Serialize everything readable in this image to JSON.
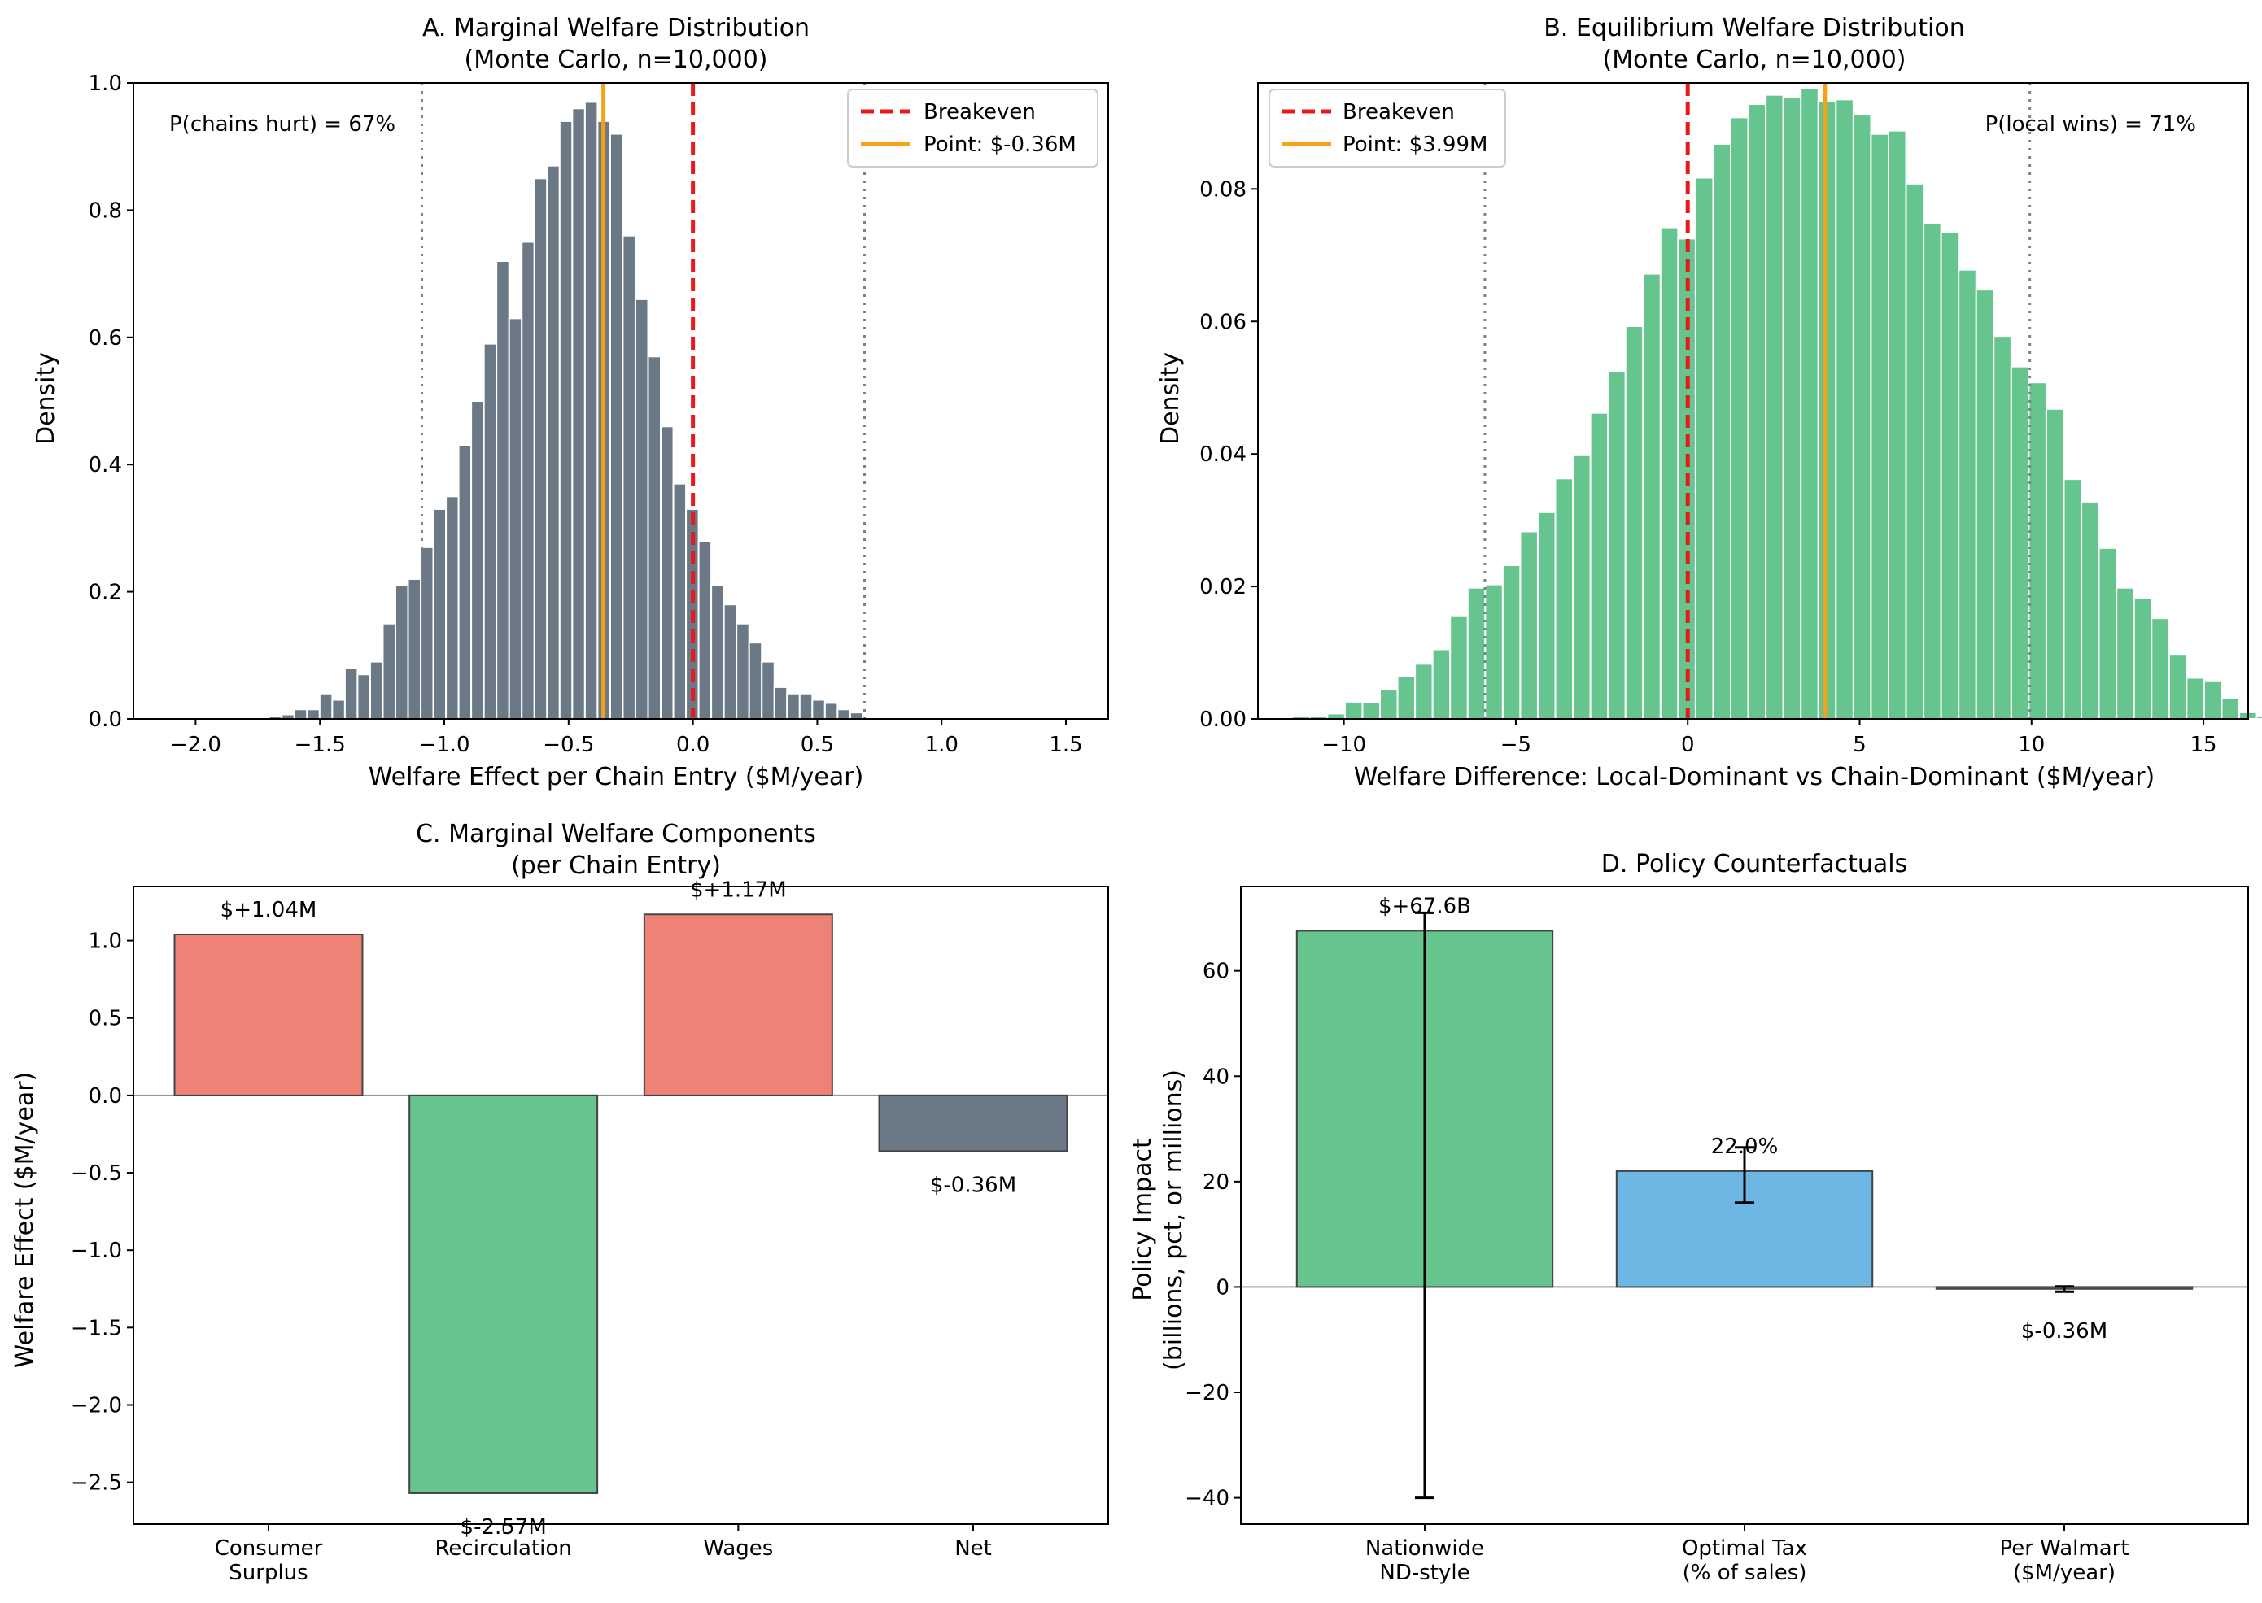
{
  "panelA": {
    "title_line1": "A. Marginal Welfare Distribution",
    "title_line2": "(Monte Carlo, n=10,000)",
    "xlabel": "Welfare Effect per Chain Entry ($M/year)",
    "ylabel": "Density",
    "annotation": "P(chains hurt) = 67%",
    "legend": [
      {
        "label": "Breakeven",
        "style": "dashed",
        "color": "#e8191b"
      },
      {
        "label": "Point: $-0.36M",
        "style": "solid",
        "color": "#f5a316"
      }
    ]
  },
  "panelB": {
    "title_line1": "B. Equilibrium Welfare Distribution",
    "title_line2": "(Monte Carlo, n=10,000)",
    "xlabel": "Welfare Difference: Local-Dominant vs Chain-Dominant ($M/year)",
    "ylabel": "Density",
    "annotation": "P(local wins) = 71%",
    "legend": [
      {
        "label": "Breakeven",
        "style": "dashed",
        "color": "#e8191b"
      },
      {
        "label": "Point: $3.99M",
        "style": "solid",
        "color": "#f5a316"
      }
    ]
  },
  "panelC": {
    "title_line1": "C. Marginal Welfare Components",
    "title_line2": "(per Chain Entry)",
    "ylabel": "Welfare Effect ($M/year)",
    "bar_labels": [
      "$+1.04M",
      "$-2.57M",
      "$+1.17M",
      "$-0.36M"
    ],
    "category_lines": [
      [
        "Consumer",
        "Surplus"
      ],
      [
        "Recirculation"
      ],
      [
        "Wages"
      ],
      [
        "Net"
      ]
    ]
  },
  "panelD": {
    "title": "D. Policy Counterfactuals",
    "ylabel_line1": "Policy Impact",
    "ylabel_line2": "(billions, pct, or millions)",
    "bar_labels": [
      "$+67.6B",
      "22.0%",
      "$-0.36M"
    ],
    "category_lines": [
      [
        "Nationwide",
        "ND-style"
      ],
      [
        "Optimal Tax",
        "(% of sales)"
      ],
      [
        "Per Walmart",
        "($M/year)"
      ]
    ]
  },
  "colors": {
    "slate": "#6b7886",
    "green": "#66c58f",
    "salmon": "#ee8277",
    "blue": "#6eb6e3",
    "breakeven": "#e8191b",
    "point": "#f5a316",
    "dotted": "#808080"
  },
  "chart_data": [
    {
      "type": "bar",
      "subtype": "histogram",
      "title": "A. Marginal Welfare Distribution\n(Monte Carlo, n=10,000)",
      "xlabel": "Welfare Effect per Chain Entry ($M/year)",
      "ylabel": "Density",
      "xlim": [
        -2.25,
        1.67
      ],
      "ylim": [
        0,
        1.0
      ],
      "xticks": [
        -2.0,
        -1.5,
        -1.0,
        -0.5,
        0.0,
        0.5,
        1.0,
        1.5
      ],
      "xtick_labels": [
        "−2.0",
        "−1.5",
        "−1.0",
        "−0.5",
        "0.0",
        "0.5",
        "1.0",
        "1.5"
      ],
      "yticks": [
        0.0,
        0.2,
        0.4,
        0.6,
        0.8,
        1.0
      ],
      "ytick_labels": [
        "0.0",
        "0.2",
        "0.4",
        "0.6",
        "0.8",
        "1.0"
      ],
      "bin_start": -2.06,
      "bin_width": 0.0508,
      "densities": [
        0.002,
        0.002,
        0.0,
        0.0,
        0.002,
        0.002,
        0.0,
        0.005,
        0.007,
        0.015,
        0.015,
        0.04,
        0.03,
        0.08,
        0.07,
        0.09,
        0.15,
        0.21,
        0.22,
        0.27,
        0.33,
        0.35,
        0.43,
        0.5,
        0.59,
        0.72,
        0.63,
        0.75,
        0.85,
        0.87,
        0.94,
        0.96,
        0.97,
        0.94,
        0.92,
        0.76,
        0.66,
        0.57,
        0.46,
        0.37,
        0.33,
        0.28,
        0.21,
        0.18,
        0.15,
        0.12,
        0.09,
        0.05,
        0.04,
        0.04,
        0.03,
        0.025,
        0.015,
        0.01,
        0.002,
        0.0
      ],
      "vlines": [
        {
          "x": 0.0,
          "label": "Breakeven",
          "style": "dashed"
        },
        {
          "x": -0.36,
          "label": "Point: $-0.36M",
          "style": "solid"
        },
        {
          "x": -1.09,
          "style": "dotted"
        },
        {
          "x": 0.69,
          "style": "dotted"
        }
      ],
      "annotation": "P(chains hurt) = 67%",
      "legend_position": "top-right"
    },
    {
      "type": "bar",
      "subtype": "histogram",
      "title": "B. Equilibrium Welfare Distribution\n(Monte Carlo, n=10,000)",
      "xlabel": "Welfare Difference: Local-Dominant vs Chain-Dominant ($M/year)",
      "ylabel": "Density",
      "xlim": [
        -12.5,
        16.3
      ],
      "ylim": [
        0,
        0.096
      ],
      "xticks": [
        -10,
        -5,
        0,
        5,
        10,
        15
      ],
      "xtick_labels": [
        "−10",
        "−5",
        "0",
        "5",
        "10",
        "15"
      ],
      "yticks": [
        0.0,
        0.02,
        0.04,
        0.06,
        0.08
      ],
      "ytick_labels": [
        "0.00",
        "0.02",
        "0.04",
        "0.06",
        "0.08"
      ],
      "bin_start": -11.5,
      "bin_width": 0.51,
      "densities": [
        0.0005,
        0.0005,
        0.0008,
        0.0026,
        0.0025,
        0.0045,
        0.0065,
        0.0083,
        0.0105,
        0.0155,
        0.0198,
        0.0203,
        0.0232,
        0.0283,
        0.0312,
        0.0363,
        0.0398,
        0.0462,
        0.0525,
        0.0593,
        0.0672,
        0.0742,
        0.0725,
        0.0817,
        0.0868,
        0.0908,
        0.0928,
        0.0942,
        0.0938,
        0.0952,
        0.0932,
        0.0935,
        0.0912,
        0.0883,
        0.0888,
        0.0808,
        0.0748,
        0.0735,
        0.0678,
        0.0648,
        0.0578,
        0.0532,
        0.0508,
        0.0468,
        0.0362,
        0.0328,
        0.0258,
        0.0198,
        0.0182,
        0.0152,
        0.0098,
        0.0062,
        0.0058,
        0.0032,
        0.001,
        0.0005
      ],
      "vlines": [
        {
          "x": 0.0,
          "label": "Breakeven",
          "style": "dashed"
        },
        {
          "x": 3.99,
          "label": "Point: $3.99M",
          "style": "solid"
        },
        {
          "x": -5.9,
          "style": "dotted"
        },
        {
          "x": 9.95,
          "style": "dotted"
        }
      ],
      "annotation": "P(local wins) = 71%",
      "legend_position": "top-left"
    },
    {
      "type": "bar",
      "title": "C. Marginal Welfare Components\n(per Chain Entry)",
      "xlabel": "",
      "ylabel": "Welfare Effect ($M/year)",
      "categories": [
        "Consumer Surplus",
        "Recirculation",
        "Wages",
        "Net"
      ],
      "values": [
        1.04,
        -2.57,
        1.17,
        -0.36
      ],
      "bar_labels": [
        "$+1.04M",
        "$-2.57M",
        "$+1.17M",
        "$-0.36M"
      ],
      "bar_colors": [
        "salmon",
        "green",
        "salmon",
        "slate"
      ],
      "ylim": [
        -2.77,
        1.35
      ],
      "yticks": [
        -2.5,
        -2.0,
        -1.5,
        -1.0,
        -0.5,
        0.0,
        0.5,
        1.0
      ],
      "ytick_labels": [
        "−2.5",
        "−2.0",
        "−1.5",
        "−1.0",
        "−0.5",
        "0.0",
        "0.5",
        "1.0"
      ]
    },
    {
      "type": "bar",
      "title": "D. Policy Counterfactuals",
      "xlabel": "",
      "ylabel": "Policy Impact\n(billions, pct, or millions)",
      "categories": [
        "Nationwide ND-style",
        "Optimal Tax (% of sales)",
        "Per Walmart ($M/year)"
      ],
      "values": [
        67.6,
        22.0,
        -0.36
      ],
      "error_low": [
        -40,
        16,
        -0.9
      ],
      "error_high": [
        71,
        26.5,
        0.1
      ],
      "bar_labels": [
        "$+67.6B",
        "22.0%",
        "$-0.36M"
      ],
      "bar_colors": [
        "green",
        "blue",
        "slate"
      ],
      "ylim": [
        -45,
        76
      ],
      "yticks": [
        -40,
        -20,
        0,
        20,
        40,
        60
      ],
      "ytick_labels": [
        "−40",
        "−20",
        "0",
        "20",
        "40",
        "60"
      ]
    }
  ]
}
